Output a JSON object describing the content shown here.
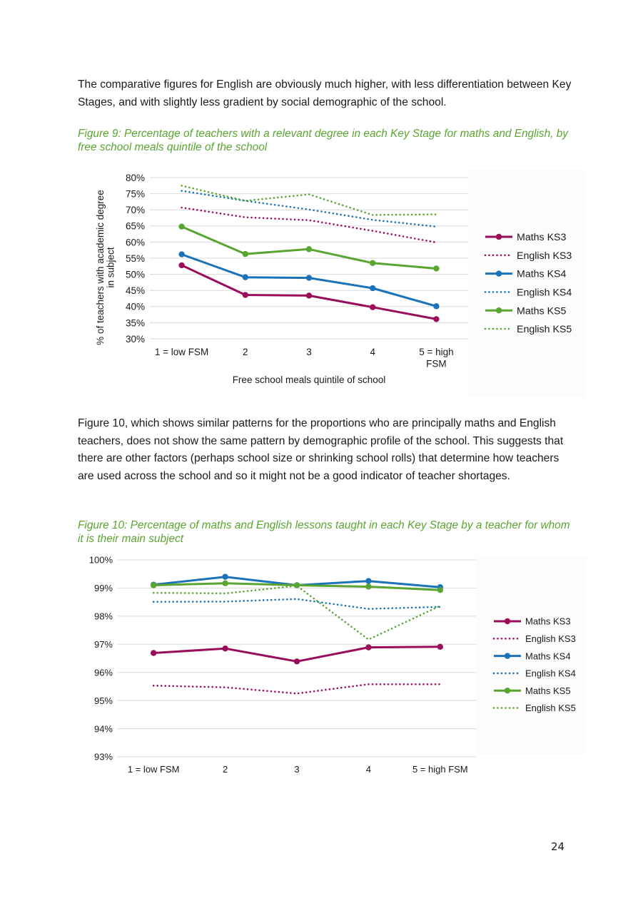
{
  "paragraphs": {
    "p1": "The comparative figures for English are obviously much higher, with less differentiation between Key Stages, and with slightly less gradient by social demographic of the school.",
    "p2": "Figure 10, which shows similar patterns for the proportions who are principally maths and English teachers, does not show the same pattern by demographic profile of the school. This suggests that there are other factors (perhaps school size or shrinking school rolls) that determine how teachers are used across the school and so it might not be a good indicator of teacher shortages."
  },
  "captions": {
    "fig9": "Figure 9: Percentage of teachers with a relevant degree in each Key Stage for maths and English, by free school meals quintile of the school",
    "fig10": "Figure 10: Percentage of maths and English lessons taught in each Key Stage by a teacher for whom it is their main subject"
  },
  "page_number": "24",
  "colors": {
    "caption": "#5aa532",
    "ks3": "#9b0d5a",
    "ks4": "#1a72b8",
    "ks5": "#5aa532"
  },
  "chart_data": [
    {
      "type": "line",
      "categories": [
        "1 = low FSM",
        "2",
        "3",
        "4",
        "5 = high FSM"
      ],
      "category_lines": [
        [
          "1 = low FSM"
        ],
        [
          "2"
        ],
        [
          "3"
        ],
        [
          "4"
        ],
        [
          "5 = high",
          "FSM"
        ]
      ],
      "ylabel_lines": [
        "% of teachers with academic degree",
        "in subject"
      ],
      "xlabel": "Free school meals quintile of school",
      "ylim": [
        30,
        80
      ],
      "yticks": [
        30,
        35,
        40,
        45,
        50,
        55,
        60,
        65,
        70,
        75,
        80
      ],
      "y_tick_format": "percent_int",
      "legend_position": "right",
      "series": [
        {
          "name": "Maths KS3",
          "style": "solid",
          "color": "#9b0d5a",
          "values": [
            52.8,
            43.6,
            43.4,
            39.8,
            36.1
          ]
        },
        {
          "name": "English KS3",
          "style": "dotted",
          "color": "#9b0d5a",
          "values": [
            70.7,
            67.7,
            66.8,
            63.5,
            59.9
          ]
        },
        {
          "name": "Maths KS4",
          "style": "solid",
          "color": "#1a72b8",
          "values": [
            56.2,
            49.1,
            48.9,
            45.7,
            40.1
          ]
        },
        {
          "name": "English KS4",
          "style": "dotted",
          "color": "#1a72b8",
          "values": [
            75.9,
            72.8,
            70.1,
            66.9,
            64.8
          ]
        },
        {
          "name": "Maths KS5",
          "style": "solid",
          "color": "#5aa532",
          "values": [
            64.8,
            56.3,
            57.8,
            53.5,
            51.8
          ]
        },
        {
          "name": "English KS5",
          "style": "dotted",
          "color": "#5aa532",
          "values": [
            77.5,
            72.8,
            74.8,
            68.4,
            68.6
          ]
        }
      ]
    },
    {
      "type": "line",
      "categories": [
        "1 = low FSM",
        "2",
        "3",
        "4",
        "5 = high FSM"
      ],
      "category_lines": [
        [
          "1 = low FSM"
        ],
        [
          "2"
        ],
        [
          "3"
        ],
        [
          "4"
        ],
        [
          "5 = high FSM"
        ]
      ],
      "ylabel_lines": [],
      "xlabel": "",
      "ylim": [
        93,
        100
      ],
      "yticks": [
        93,
        94,
        95,
        96,
        97,
        98,
        99,
        100
      ],
      "y_tick_format": "percent_int",
      "legend_position": "right",
      "series": [
        {
          "name": "Maths KS3",
          "style": "solid",
          "color": "#9b0d5a",
          "values": [
            96.69,
            96.85,
            96.39,
            96.89,
            96.91
          ]
        },
        {
          "name": "English KS3",
          "style": "dotted",
          "color": "#9b0d5a",
          "values": [
            95.53,
            95.47,
            95.25,
            95.58,
            95.58
          ]
        },
        {
          "name": "Maths KS4",
          "style": "solid",
          "color": "#1a72b8",
          "values": [
            99.12,
            99.4,
            99.1,
            99.25,
            99.03
          ]
        },
        {
          "name": "English KS4",
          "style": "dotted",
          "color": "#1a72b8",
          "values": [
            98.51,
            98.52,
            98.61,
            98.26,
            98.33
          ]
        },
        {
          "name": "Maths KS5",
          "style": "solid",
          "color": "#5aa532",
          "values": [
            99.1,
            99.17,
            99.1,
            99.05,
            98.93
          ]
        },
        {
          "name": "English KS5",
          "style": "dotted",
          "color": "#5aa532",
          "values": [
            98.83,
            98.81,
            99.08,
            97.17,
            98.37
          ]
        }
      ]
    }
  ]
}
